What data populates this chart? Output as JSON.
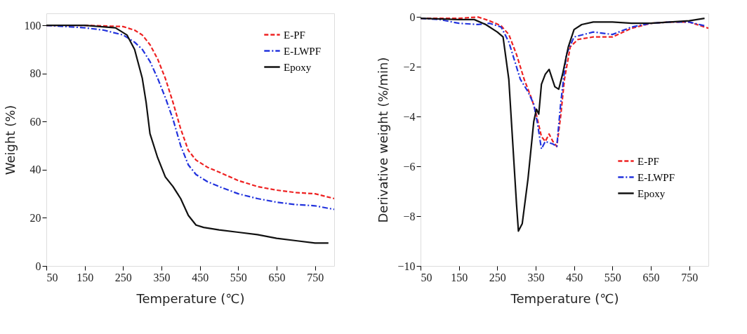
{
  "chart_data": [
    {
      "type": "line",
      "xlabel": "Temperature (℃)",
      "ylabel": "Weight (%)",
      "xlim": [
        50,
        800
      ],
      "xticks": [
        50,
        150,
        250,
        350,
        450,
        550,
        650,
        750
      ],
      "ylim": [
        0,
        105
      ],
      "yticks": [
        0,
        20,
        40,
        60,
        80,
        100
      ],
      "grid": false,
      "legend": "top right",
      "series": [
        {
          "name": "E-PF",
          "color": "#ee2222",
          "line_style": "dashed",
          "x": [
            50,
            150,
            250,
            280,
            300,
            320,
            340,
            360,
            380,
            400,
            420,
            440,
            470,
            500,
            550,
            600,
            650,
            700,
            750,
            800
          ],
          "values": [
            100,
            100,
            99.5,
            98,
            96,
            92,
            86,
            78,
            68,
            57,
            48,
            44,
            41,
            39,
            35.5,
            33,
            31.5,
            30.5,
            30,
            28
          ]
        },
        {
          "name": "E-LWPF",
          "color": "#2233dd",
          "line_style": "dashdot",
          "x": [
            50,
            150,
            200,
            250,
            280,
            300,
            320,
            340,
            360,
            380,
            400,
            420,
            440,
            470,
            500,
            550,
            600,
            650,
            700,
            750,
            800
          ],
          "values": [
            100,
            99,
            98,
            96,
            93,
            90,
            85,
            78,
            70,
            61,
            50,
            42,
            38,
            35,
            33,
            30,
            28,
            26.5,
            25.5,
            25,
            23.5
          ]
        },
        {
          "name": "Epoxy",
          "color": "#111111",
          "line_style": "solid",
          "x": [
            50,
            150,
            230,
            260,
            280,
            300,
            310,
            320,
            340,
            360,
            380,
            400,
            420,
            440,
            460,
            500,
            550,
            600,
            650,
            700,
            750,
            785
          ],
          "values": [
            100,
            100,
            99,
            96,
            90,
            78,
            68,
            55,
            45,
            37,
            33,
            28,
            21,
            17,
            16,
            15,
            14,
            13,
            11.5,
            10.5,
            9.5,
            9.5
          ]
        }
      ]
    },
    {
      "type": "line",
      "xlabel": "Temperature (℃)",
      "ylabel": "Derivative weight (%/min)",
      "xlim": [
        50,
        800
      ],
      "xticks": [
        50,
        150,
        250,
        350,
        450,
        550,
        650,
        750
      ],
      "ylim": [
        -10,
        0.15
      ],
      "yticks": [
        -10,
        -8,
        -6,
        -4,
        -2,
        0
      ],
      "grid": false,
      "legend": "right",
      "series": [
        {
          "name": "E-PF",
          "color": "#ee2222",
          "line_style": "dashed",
          "x": [
            50,
            150,
            200,
            230,
            260,
            280,
            300,
            320,
            340,
            350,
            365,
            375,
            385,
            395,
            405,
            415,
            425,
            440,
            460,
            500,
            550,
            600,
            650,
            700,
            750,
            800
          ],
          "values": [
            -0.05,
            -0.05,
            0,
            -0.15,
            -0.35,
            -0.7,
            -1.5,
            -2.5,
            -3.3,
            -3.8,
            -4.8,
            -5,
            -4.7,
            -5,
            -5.2,
            -4,
            -2.5,
            -1.2,
            -0.9,
            -0.8,
            -0.8,
            -0.45,
            -0.25,
            -0.2,
            -0.2,
            -0.45
          ]
        },
        {
          "name": "E-LWPF",
          "color": "#2233dd",
          "line_style": "dashdot",
          "x": [
            50,
            100,
            150,
            200,
            230,
            260,
            280,
            300,
            310,
            330,
            345,
            355,
            365,
            375,
            385,
            395,
            405,
            415,
            430,
            450,
            500,
            550,
            600,
            650,
            700,
            750,
            790
          ],
          "values": [
            -0.05,
            -0.1,
            -0.25,
            -0.3,
            -0.25,
            -0.4,
            -1,
            -2,
            -2.5,
            -3,
            -3.5,
            -4.3,
            -5.3,
            -5,
            -5.05,
            -5.1,
            -5.2,
            -3.5,
            -1.5,
            -0.8,
            -0.6,
            -0.7,
            -0.4,
            -0.25,
            -0.2,
            -0.2,
            -0.35
          ]
        },
        {
          "name": "Epoxy",
          "color": "#111111",
          "line_style": "solid",
          "x": [
            50,
            150,
            190,
            220,
            250,
            265,
            280,
            290,
            300,
            305,
            315,
            330,
            345,
            352,
            358,
            365,
            375,
            385,
            400,
            410,
            420,
            435,
            450,
            470,
            500,
            550,
            600,
            650,
            700,
            750,
            790
          ],
          "values": [
            -0.05,
            -0.1,
            -0.1,
            -0.3,
            -0.6,
            -0.8,
            -2.5,
            -5,
            -7.5,
            -8.6,
            -8.3,
            -6.5,
            -4.2,
            -3.7,
            -3.9,
            -2.7,
            -2.3,
            -2.1,
            -2.8,
            -2.9,
            -2.3,
            -1.2,
            -0.5,
            -0.3,
            -0.2,
            -0.2,
            -0.25,
            -0.25,
            -0.2,
            -0.15,
            -0.05
          ]
        }
      ]
    }
  ]
}
